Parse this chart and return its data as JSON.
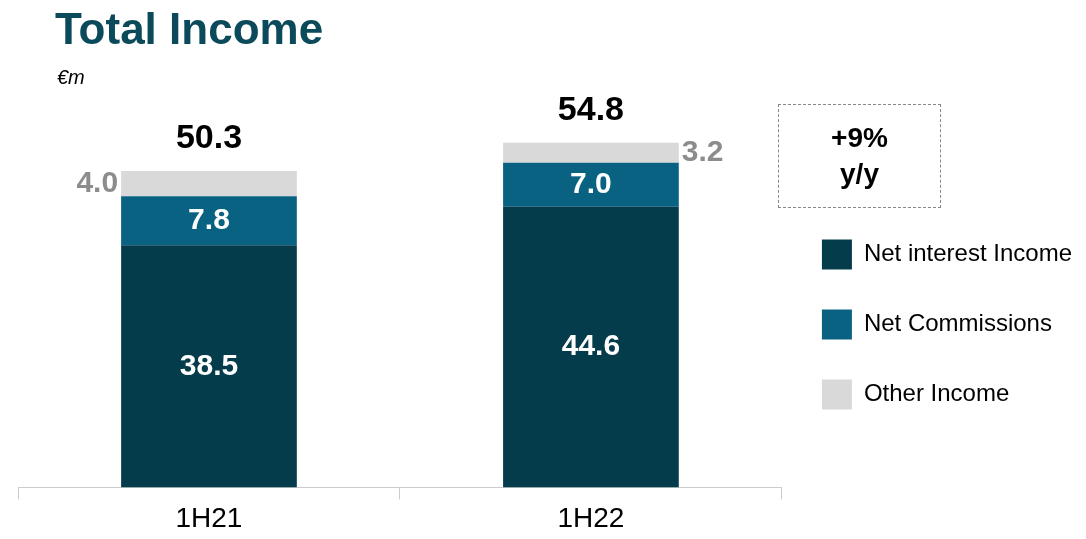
{
  "chart_data": {
    "type": "bar",
    "title": "Total Income",
    "stacked": true,
    "legend": "right",
    "grid": false,
    "categories": [
      "1H21",
      "1H22"
    ],
    "series": [
      {
        "name": "Net interest Income",
        "color": "#053c4c",
        "values": [
          38.5,
          44.6
        ],
        "value_labels": [
          "38.5",
          "44.6"
        ]
      },
      {
        "name": "Net Commissions",
        "color": "#0a6282",
        "values": [
          7.8,
          7.0
        ],
        "value_labels": [
          "7.8",
          "7.0"
        ]
      },
      {
        "name": "Other Income",
        "color": "#d9d9d9",
        "values": [
          4.0,
          3.2
        ],
        "value_labels": [
          "4.0",
          "3.2"
        ]
      }
    ],
    "totals": [
      "50.3",
      "54.8"
    ],
    "annotations": [
      "€m",
      "+9% y/y"
    ]
  }
}
